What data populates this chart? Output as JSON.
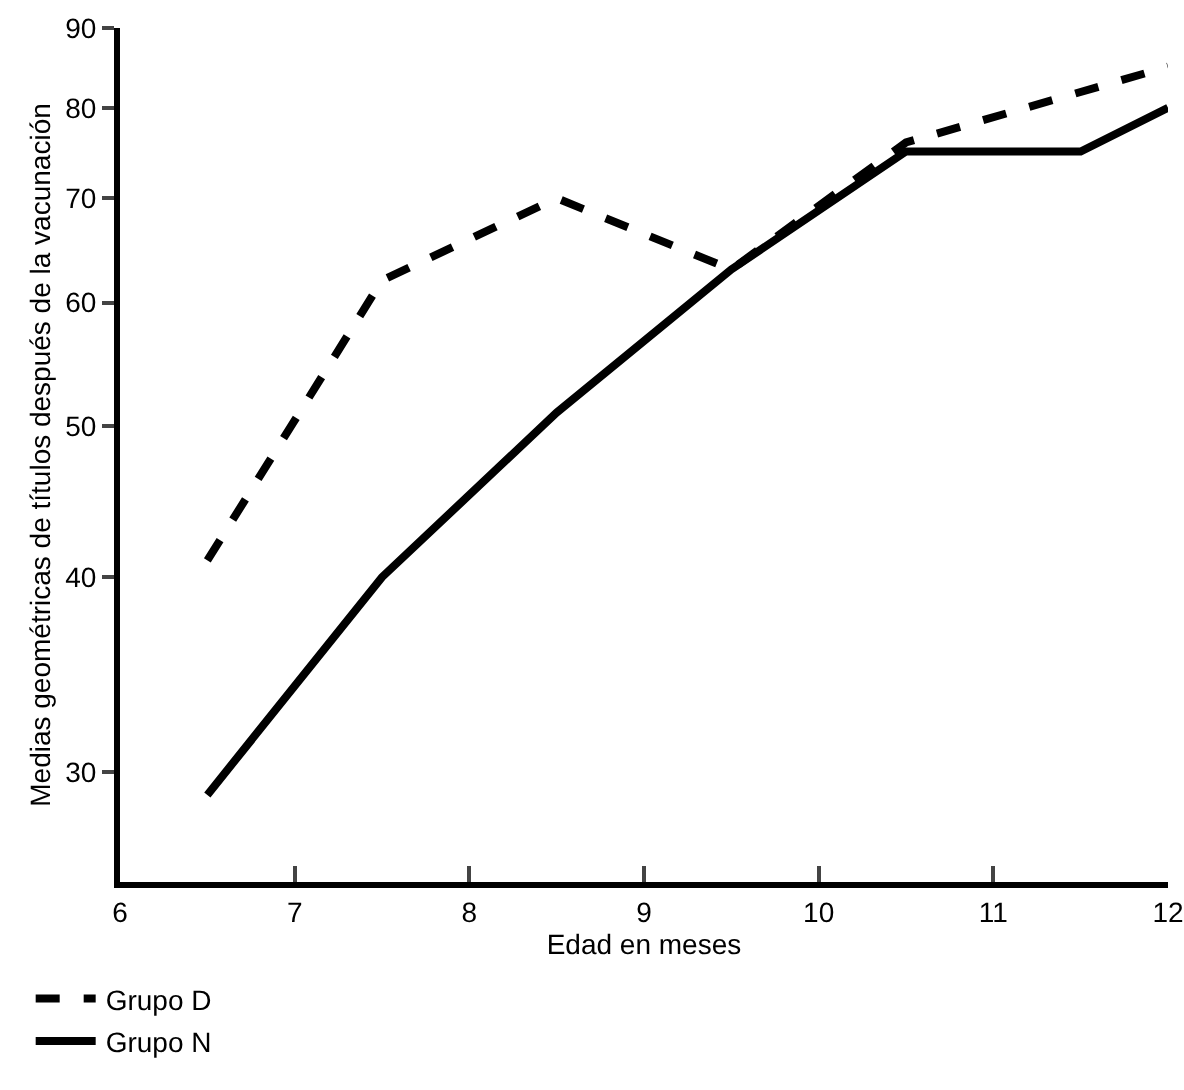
{
  "chart_data": {
    "type": "line",
    "xlabel": "Edad en meses",
    "ylabel": "Medias geométricas de títulos después de la vacunación",
    "x": [
      6.5,
      7.5,
      8.5,
      9.5,
      10.5,
      11.5,
      12
    ],
    "series": [
      {
        "name": "Grupo D",
        "color": "#000000",
        "line_style": "dashed",
        "values": [
          41,
          62,
          70,
          63,
          76,
          null,
          85
        ]
      },
      {
        "name": "Grupo N",
        "color": "#000000",
        "line_style": "solid",
        "values": [
          29,
          40,
          51,
          63,
          75,
          75,
          80
        ]
      }
    ],
    "log": true,
    "xlim": [
      6,
      12
    ],
    "xticks": [
      6,
      7,
      8,
      9,
      10,
      11,
      12
    ],
    "ylim": [
      25.5,
      90
    ],
    "yticks": [
      30,
      40,
      50,
      60,
      70,
      80,
      90
    ],
    "grid": false,
    "legend": "bottom left",
    "marker": "none"
  }
}
